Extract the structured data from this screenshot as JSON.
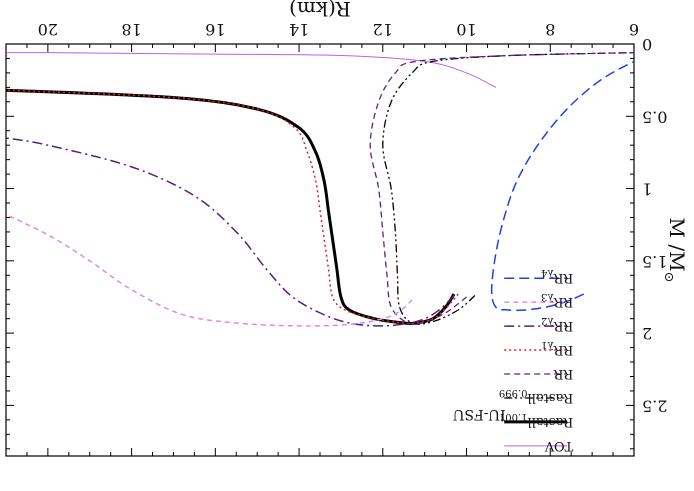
{
  "chart_data": {
    "type": "line",
    "orientation": "rotated-180",
    "xlabel": "R(km)",
    "ylabel": "M /M",
    "ylabel_sub": "⊙",
    "xlim": [
      6,
      21
    ],
    "ylim": [
      0,
      2.85
    ],
    "xticks": [
      6,
      8,
      10,
      12,
      14,
      16,
      18,
      20
    ],
    "yticks": [
      0,
      0.5,
      1,
      1.5,
      2,
      2.5
    ],
    "annotation": "IU-FSU",
    "legend_position": "bottom-left",
    "series": [
      {
        "name": "TOV",
        "color": "#c060e0",
        "dash": "solid",
        "width": 1,
        "points": [
          [
            9.3,
            0.3
          ],
          [
            10.0,
            0.2
          ],
          [
            11.0,
            0.12
          ],
          [
            13.0,
            0.08
          ],
          [
            16.0,
            0.07
          ],
          [
            20.0,
            0.06
          ],
          [
            21.0,
            0.06
          ]
        ]
      },
      {
        "name": "Rastall",
        "sub": "1.001",
        "color": "#000000",
        "dash": "solid",
        "width": 3,
        "points": [
          [
            10.3,
            1.73
          ],
          [
            10.5,
            1.82
          ],
          [
            10.8,
            1.9
          ],
          [
            11.2,
            1.93
          ],
          [
            11.5,
            1.93
          ],
          [
            12.2,
            1.9
          ],
          [
            12.8,
            1.84
          ],
          [
            13.0,
            1.75
          ],
          [
            13.1,
            1.55
          ],
          [
            13.2,
            1.35
          ],
          [
            13.3,
            1.15
          ],
          [
            13.4,
            0.95
          ],
          [
            13.6,
            0.75
          ],
          [
            14.0,
            0.58
          ],
          [
            15.0,
            0.45
          ],
          [
            17.0,
            0.37
          ],
          [
            21.0,
            0.32
          ]
        ]
      },
      {
        "name": "Rastall",
        "sub": "0.999",
        "color": "#000000",
        "dash": "dashdotdot",
        "width": 1.3,
        "points": [
          [
            9.8,
            1.74
          ],
          [
            10.2,
            1.84
          ],
          [
            10.8,
            1.92
          ],
          [
            11.3,
            1.93
          ],
          [
            11.6,
            1.82
          ],
          [
            11.65,
            1.6
          ],
          [
            11.7,
            1.3
          ],
          [
            11.8,
            1.0
          ],
          [
            12.0,
            0.7
          ],
          [
            11.8,
            0.4
          ],
          [
            11.3,
            0.2
          ],
          [
            10.8,
            0.12
          ],
          [
            9.0,
            0.08
          ],
          [
            6.0,
            0.06
          ]
        ]
      },
      {
        "name": "RR",
        "sub": "",
        "color": "#602080",
        "dash": "dashed",
        "width": 1.3,
        "points": [
          [
            10.0,
            1.75
          ],
          [
            10.5,
            1.86
          ],
          [
            11.0,
            1.92
          ],
          [
            11.4,
            1.93
          ],
          [
            11.8,
            1.82
          ],
          [
            11.9,
            1.6
          ],
          [
            12.0,
            1.3
          ],
          [
            12.1,
            1.0
          ],
          [
            12.3,
            0.7
          ],
          [
            12.1,
            0.4
          ],
          [
            11.7,
            0.2
          ],
          [
            11.2,
            0.12
          ],
          [
            9.0,
            0.08
          ],
          [
            6.0,
            0.06
          ]
        ]
      },
      {
        "name": "RR",
        "sub": "λ1",
        "color": "#e02020",
        "dash": "dotted",
        "width": 1.5,
        "points": [
          [
            10.2,
            1.73
          ],
          [
            10.5,
            1.83
          ],
          [
            10.8,
            1.9
          ],
          [
            11.2,
            1.93
          ],
          [
            11.5,
            1.93
          ],
          [
            12.2,
            1.9
          ],
          [
            12.9,
            1.84
          ],
          [
            13.2,
            1.75
          ],
          [
            13.3,
            1.55
          ],
          [
            13.4,
            1.35
          ],
          [
            13.5,
            1.15
          ],
          [
            13.6,
            0.95
          ],
          [
            13.8,
            0.75
          ],
          [
            14.1,
            0.58
          ],
          [
            15.0,
            0.45
          ],
          [
            17.0,
            0.37
          ],
          [
            21.0,
            0.32
          ]
        ]
      },
      {
        "name": "RR",
        "sub": "λ2",
        "color": "#502080",
        "dash": "dashdot",
        "width": 1.5,
        "points": [
          [
            10.3,
            1.74
          ],
          [
            10.7,
            1.85
          ],
          [
            11.2,
            1.92
          ],
          [
            12.0,
            1.95
          ],
          [
            12.8,
            1.93
          ],
          [
            13.5,
            1.86
          ],
          [
            14.2,
            1.74
          ],
          [
            14.8,
            1.55
          ],
          [
            15.5,
            1.3
          ],
          [
            16.5,
            1.05
          ],
          [
            18.0,
            0.85
          ],
          [
            20.0,
            0.7
          ],
          [
            21.0,
            0.65
          ]
        ]
      },
      {
        "name": "RR",
        "sub": "λ3",
        "color": "#d090f0",
        "dash": "dashed-short",
        "width": 1.5,
        "points": [
          [
            11.3,
            1.77
          ],
          [
            11.6,
            1.85
          ],
          [
            12.0,
            1.9
          ],
          [
            12.8,
            1.94
          ],
          [
            14.0,
            1.95
          ],
          [
            15.5,
            1.93
          ],
          [
            16.8,
            1.87
          ],
          [
            18.0,
            1.7
          ],
          [
            19.0,
            1.5
          ],
          [
            20.0,
            1.32
          ],
          [
            21.0,
            1.18
          ]
        ]
      },
      {
        "name": "RR",
        "sub": "λ4",
        "color": "#2040e0",
        "dash": "dashed-long",
        "width": 1.5,
        "points": [
          [
            7.2,
            1.73
          ],
          [
            7.6,
            1.78
          ],
          [
            8.1,
            1.82
          ],
          [
            8.6,
            1.84
          ],
          [
            9.0,
            1.84
          ],
          [
            9.3,
            1.82
          ],
          [
            9.4,
            1.7
          ],
          [
            9.3,
            1.45
          ],
          [
            9.1,
            1.2
          ],
          [
            8.8,
            0.95
          ],
          [
            8.3,
            0.7
          ],
          [
            7.6,
            0.45
          ],
          [
            6.8,
            0.25
          ],
          [
            6.0,
            0.12
          ]
        ]
      }
    ]
  }
}
